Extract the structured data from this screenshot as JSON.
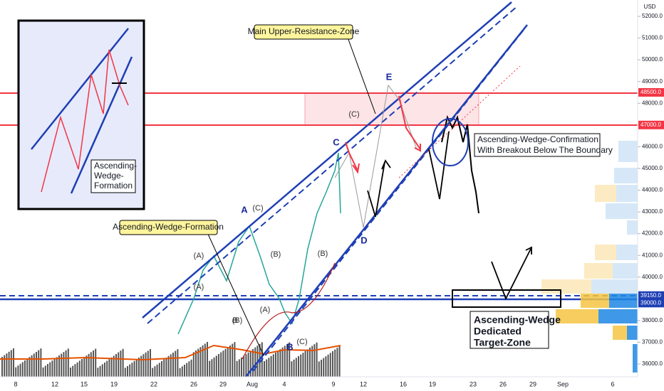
{
  "currency": "USD",
  "price_axis": {
    "ylim": [
      36000,
      52000
    ],
    "ticks": [
      {
        "value": 52000,
        "label": "52000.0"
      },
      {
        "value": 51000,
        "label": "51000.0"
      },
      {
        "value": 50000,
        "label": "50000.0"
      },
      {
        "value": 49000,
        "label": "49000.0"
      },
      {
        "value": 48000,
        "label": "48000.0"
      },
      {
        "value": 46000,
        "label": "46000.0"
      },
      {
        "value": 45000,
        "label": "45000.0"
      },
      {
        "value": 44000,
        "label": "44000.0"
      },
      {
        "value": 43000,
        "label": "43000.0"
      },
      {
        "value": 42000,
        "label": "42000.0"
      },
      {
        "value": 41000,
        "label": "41000.0"
      },
      {
        "value": 40000,
        "label": "40000.0"
      },
      {
        "value": 38000,
        "label": "38000.0"
      },
      {
        "value": 37000,
        "label": "37000.0"
      },
      {
        "value": 36000,
        "label": "36000.0"
      }
    ],
    "tags": [
      {
        "value": 48500,
        "label": "48500.0",
        "color": "#f23645"
      },
      {
        "value": 47000,
        "label": "47000.0",
        "color": "#f23645"
      },
      {
        "value": 39150,
        "label": "39150.0",
        "color": "#1e3fb4"
      },
      {
        "value": 39000,
        "label": "39000.0",
        "color": "#1e3fb4"
      }
    ]
  },
  "time_axis": [
    "8",
    "12",
    "15",
    "19",
    "22",
    "26",
    "29",
    "Aug",
    "4",
    "9",
    "12",
    "16",
    "19",
    "23",
    "26",
    "29",
    "Sep",
    "6"
  ],
  "annotations": {
    "resistance": "Main Upper-Resistance-Zone",
    "formation": "Ascending-Wedge-Formation",
    "confirmation": [
      "Ascending-Wedge-Confirmation",
      "With Breakout Below The Boundary"
    ],
    "target": [
      "Ascending-Wedge",
      "Dedicated",
      "Target-Zone"
    ],
    "inset": [
      "Ascending-",
      "Wedge-",
      "Formation"
    ]
  },
  "waves": [
    "A",
    "(C)",
    "(A)",
    "(B)",
    "B",
    "(A)",
    "(B)",
    "(A)",
    "(B)",
    "C",
    "(C)",
    "E",
    "D",
    "B",
    "(C)"
  ]
}
